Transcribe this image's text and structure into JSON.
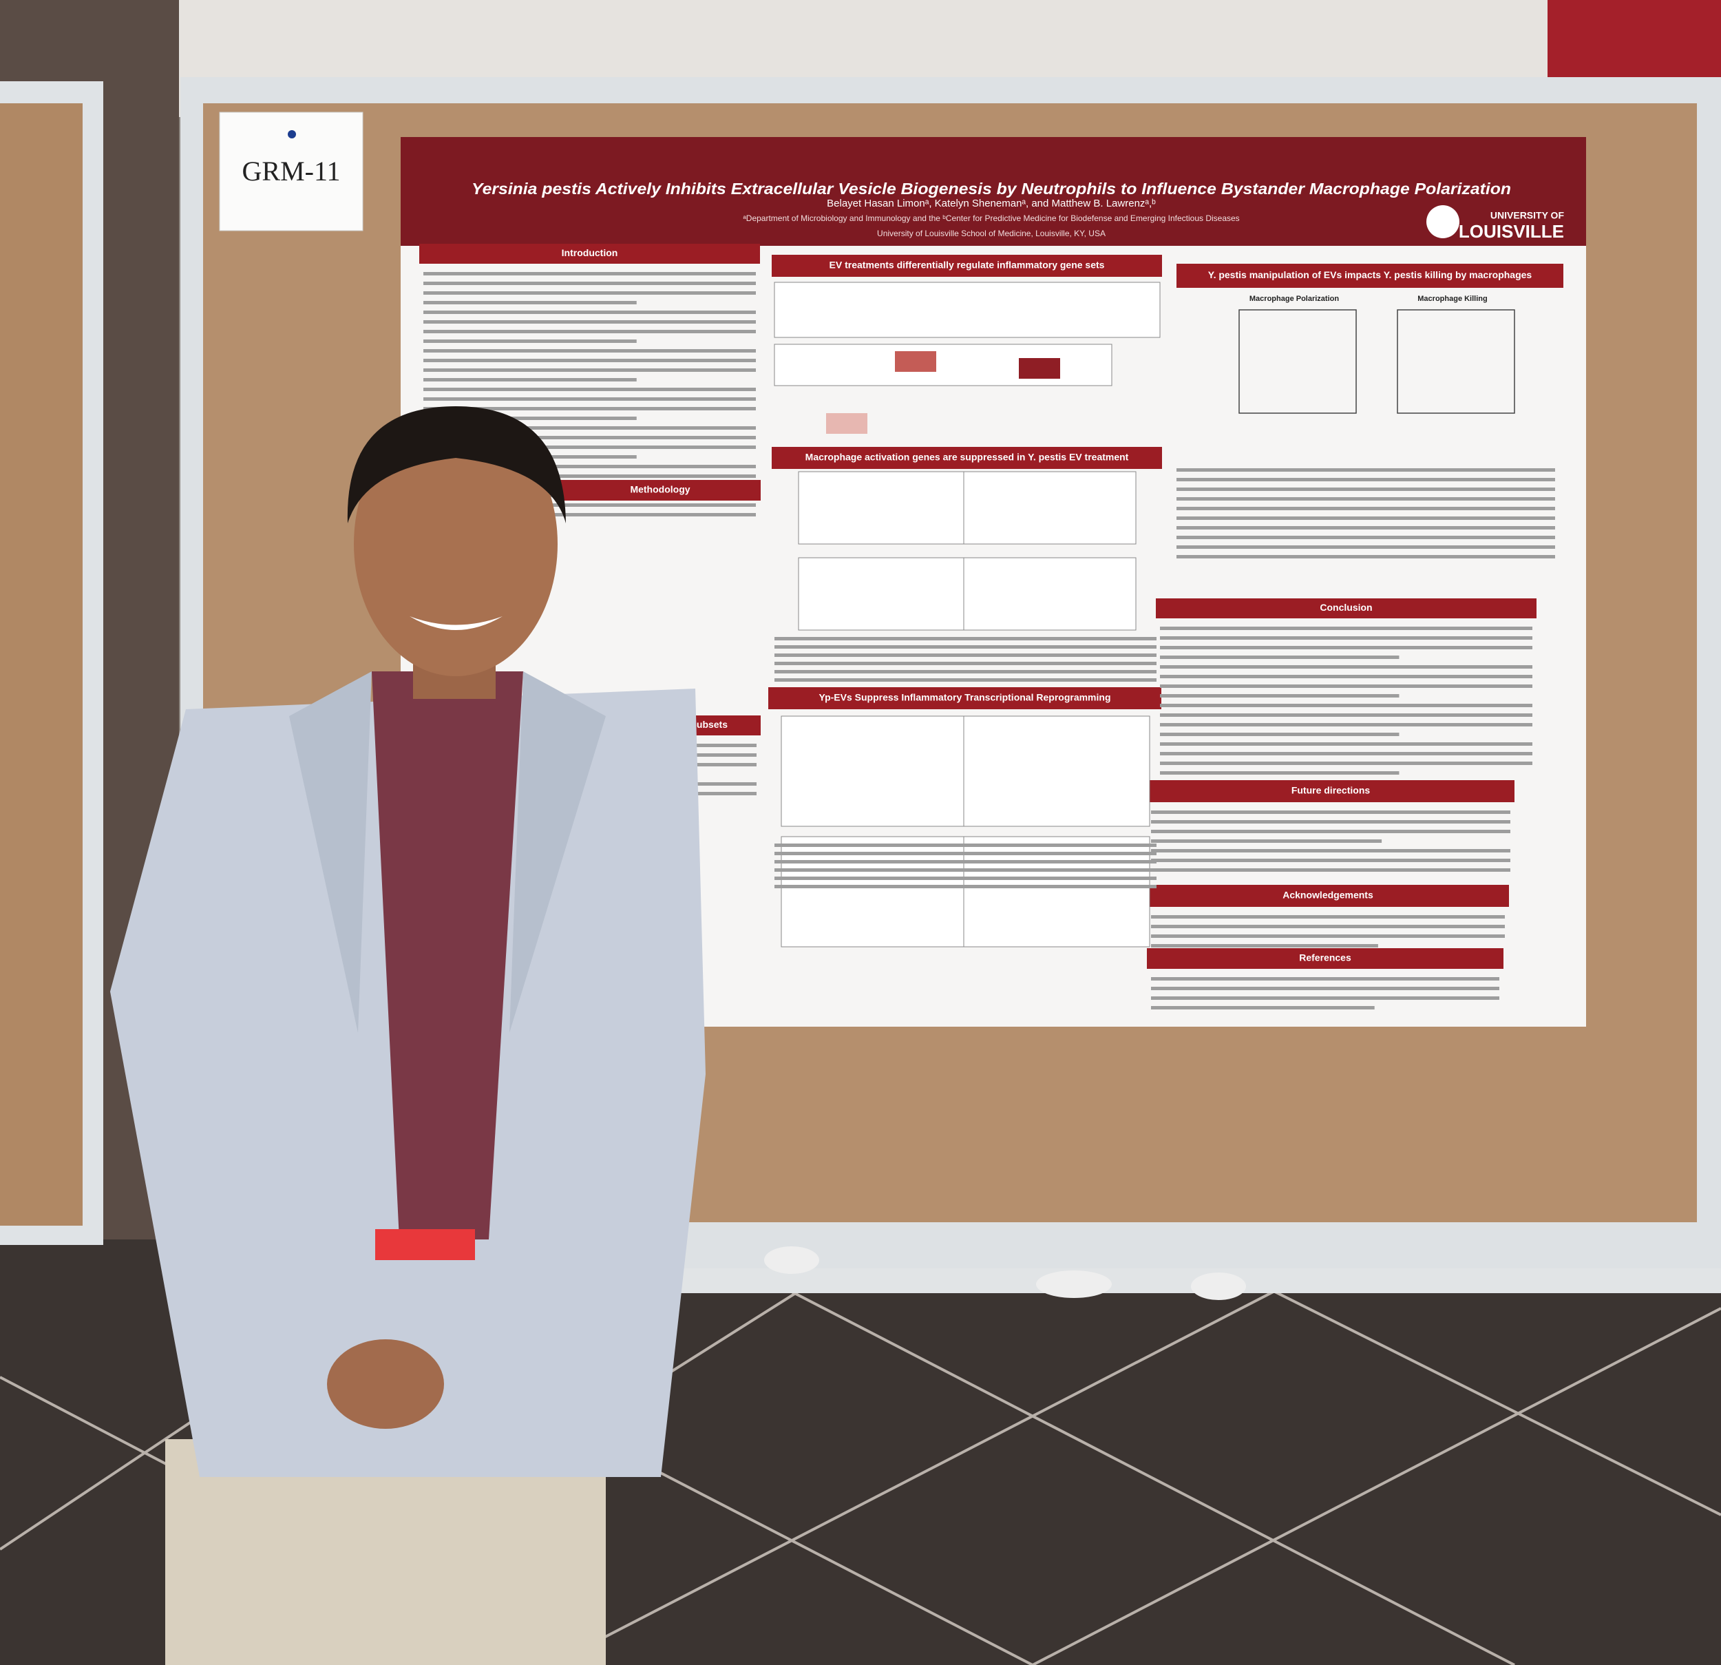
{
  "sign": "GRM-11",
  "poster": {
    "title": "Yersinia pestis Actively Inhibits Extracellular Vesicle Biogenesis by Neutrophils to Influence Bystander Macrophage Polarization",
    "authors": "Belayet Hasan Limonᵃ, Katelyn Shenemanᵃ, and Matthew B. Lawrenzᵃ,ᵇ",
    "affiliation": "ᵃDepartment of Microbiology and Immunology and the ᵇCenter for Predictive Medicine for Biodefense and Emerging Infectious Diseases",
    "institution": "University of Louisville School of Medicine, Louisville, KY, USA",
    "logo_top": "UNIVERSITY OF",
    "logo": "LOUISVILLE",
    "sections": [
      "Introduction",
      "Methodology",
      "Distinct Macrophage Subsets",
      "EV treatments differentially regulate inflammatory gene sets",
      "Macrophage activation genes are suppressed in Y. pestis EV treatment",
      "Yp-EVs Suppress Inflammatory Transcriptional Reprogramming",
      "Y. pestis manipulation of EVs impacts Y. pestis killing by macrophages",
      "Conclusion",
      "Future directions",
      "Acknowledgements",
      "References"
    ],
    "panel_titles": [
      "Macrophage Polarization",
      "Macrophage Killing"
    ]
  }
}
